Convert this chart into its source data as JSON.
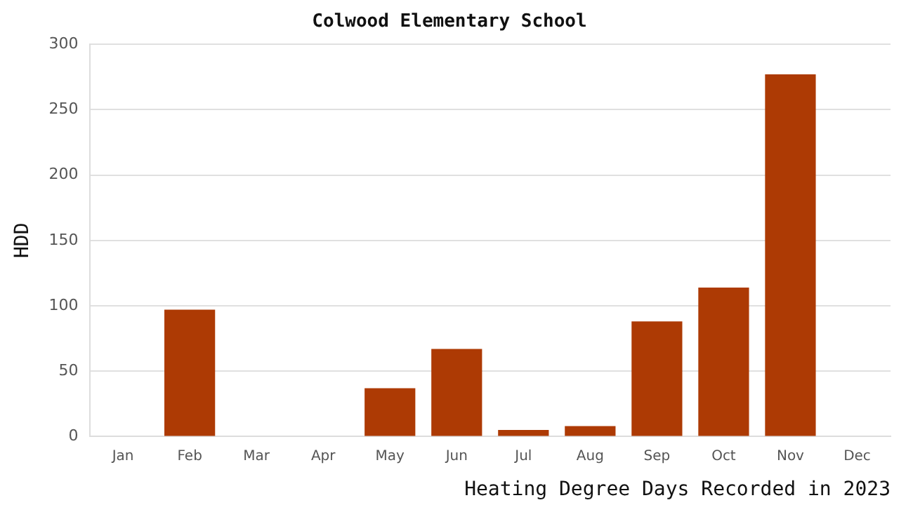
{
  "chart_data": {
    "type": "bar",
    "title": "Colwood Elementary School",
    "xlabel": "Heating Degree Days Recorded in 2023",
    "ylabel": "HDD",
    "categories": [
      "Jan",
      "Feb",
      "Mar",
      "Apr",
      "May",
      "Jun",
      "Jul",
      "Aug",
      "Sep",
      "Oct",
      "Nov",
      "Dec"
    ],
    "values": [
      0,
      97,
      0,
      0,
      37,
      67,
      5,
      8,
      88,
      114,
      277,
      0
    ],
    "color": "#ad3a04",
    "ylim": [
      0,
      300
    ],
    "yticks": [
      0,
      50,
      100,
      150,
      200,
      250,
      300
    ],
    "grid": "y",
    "legend": false
  }
}
